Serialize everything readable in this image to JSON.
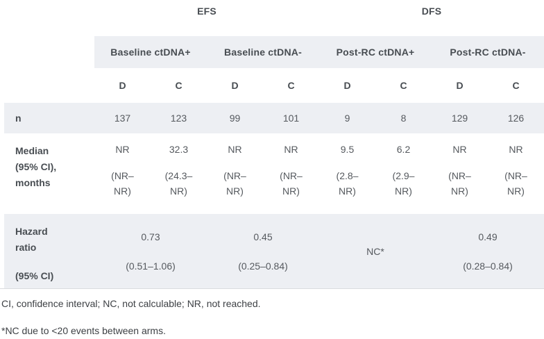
{
  "header": {
    "efs": "EFS",
    "dfs": "DFS",
    "groups": [
      "Baseline ctDNA+",
      "Baseline ctDNA-",
      "Post-RC ctDNA+",
      "Post-RC ctDNA-"
    ],
    "subcols": [
      "D",
      "C",
      "D",
      "C",
      "D",
      "C",
      "D",
      "C"
    ]
  },
  "rows": {
    "n": {
      "label": "n",
      "values": [
        "137",
        "123",
        "99",
        "101",
        "9",
        "8",
        "129",
        "126"
      ]
    },
    "median": {
      "label_lines": [
        "Median",
        "(95% CI),",
        "months"
      ],
      "cells": [
        {
          "value": "NR",
          "ci1": "(NR–",
          "ci2": "NR)"
        },
        {
          "value": "32.3",
          "ci1": "(24.3–",
          "ci2": "NR)"
        },
        {
          "value": "NR",
          "ci1": "(NR–",
          "ci2": "NR)"
        },
        {
          "value": "NR",
          "ci1": "(NR–",
          "ci2": "NR)"
        },
        {
          "value": "9.5",
          "ci1": "(2.8–",
          "ci2": "NR)"
        },
        {
          "value": "6.2",
          "ci1": "(2.9–",
          "ci2": "NR)"
        },
        {
          "value": "NR",
          "ci1": "(NR–",
          "ci2": "NR)"
        },
        {
          "value": "NR",
          "ci1": "(NR–",
          "ci2": "NR)"
        }
      ]
    },
    "hazard": {
      "label_lines": [
        "Hazard",
        "ratio"
      ],
      "label_sub": "(95% CI)",
      "cells": [
        {
          "value": "0.73",
          "ci": "(0.51–1.06)"
        },
        {
          "value": "0.45",
          "ci": "(0.25–0.84)"
        },
        {
          "value": "NC*",
          "ci": ""
        },
        {
          "value": "0.49",
          "ci": "(0.28–0.84)"
        }
      ]
    }
  },
  "footnotes": [
    "CI, confidence interval; NC, not calculable; NR, not reached.",
    "*NC due to <20 events between arms."
  ],
  "colors": {
    "band": "#edeff3",
    "header_text": "#484d52",
    "value_text": "#55595e",
    "footnote_text": "#3d4044",
    "divider": "#d9dbde"
  }
}
